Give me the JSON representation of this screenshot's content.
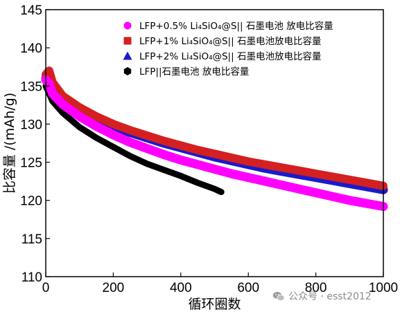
{
  "chart_data": {
    "type": "scatter",
    "title": "",
    "xlabel": "循环圈数",
    "ylabel": "比容量 /(mAh/g)",
    "xlim": [
      0,
      1000
    ],
    "ylim": [
      110,
      145
    ],
    "xticks": [
      "0",
      "200",
      "400",
      "600",
      "800",
      "1000"
    ],
    "yticks": [
      "110",
      "115",
      "120",
      "125",
      "130",
      "135",
      "140",
      "145"
    ],
    "grid": false,
    "legend_position": "top-right",
    "series": [
      {
        "name": "LFP+0.5% Li₄SiO₄@S|| 石墨电池 放电比容量",
        "color": "#ff00ff",
        "marker": "circle",
        "x": [
          0,
          10,
          20,
          50,
          100,
          150,
          200,
          250,
          300,
          350,
          400,
          450,
          500,
          550,
          600,
          650,
          700,
          750,
          800,
          850,
          900,
          950,
          1000
        ],
        "y": [
          135.8,
          135.3,
          134.0,
          132.6,
          131.0,
          129.7,
          128.6,
          127.6,
          126.8,
          126.0,
          125.3,
          124.7,
          124.1,
          123.5,
          123.0,
          122.5,
          122.0,
          121.5,
          121.0,
          120.5,
          120.0,
          119.6,
          119.2
        ]
      },
      {
        "name": "LFP+1% Li₄SiO₄@S|| 石墨电池放电比容量",
        "color": "#d42020",
        "marker": "square",
        "x": [
          0,
          10,
          20,
          50,
          100,
          150,
          200,
          250,
          300,
          350,
          400,
          450,
          500,
          550,
          600,
          650,
          700,
          750,
          800,
          850,
          900,
          950,
          1000
        ],
        "y": [
          136.5,
          137.0,
          135.5,
          133.7,
          132.2,
          131.0,
          130.0,
          129.2,
          128.5,
          127.8,
          127.2,
          126.6,
          126.1,
          125.6,
          125.1,
          124.7,
          124.3,
          123.9,
          123.5,
          123.1,
          122.7,
          122.3,
          121.9
        ]
      },
      {
        "name": "LFP+2% Li₄SiO₄@S|| 石墨电池放电比容量",
        "color": "#1a1acc",
        "marker": "triangle",
        "x": [
          0,
          10,
          20,
          50,
          100,
          150,
          200,
          250,
          300,
          350,
          400,
          450,
          500,
          550,
          600,
          650,
          700,
          750,
          800,
          850,
          900,
          950,
          1000
        ],
        "y": [
          136.0,
          136.2,
          135.0,
          133.3,
          131.8,
          130.6,
          129.7,
          128.9,
          128.2,
          127.5,
          126.9,
          126.3,
          125.7,
          125.2,
          124.7,
          124.2,
          123.8,
          123.4,
          123.0,
          122.6,
          122.2,
          121.8,
          121.4
        ]
      },
      {
        "name": "LFP||石墨电池 放电比容量",
        "color": "#000000",
        "marker": "hexagon",
        "x": [
          0,
          10,
          20,
          50,
          100,
          150,
          200,
          250,
          300,
          350,
          400,
          450,
          500,
          520
        ],
        "y": [
          135.0,
          134.0,
          133.0,
          131.5,
          129.6,
          128.2,
          127.0,
          125.8,
          124.8,
          124.0,
          123.2,
          122.3,
          121.5,
          121.1
        ]
      }
    ]
  },
  "watermark": {
    "text": "公众号 · esst2012",
    "icon": "wechat-logo-icon"
  }
}
